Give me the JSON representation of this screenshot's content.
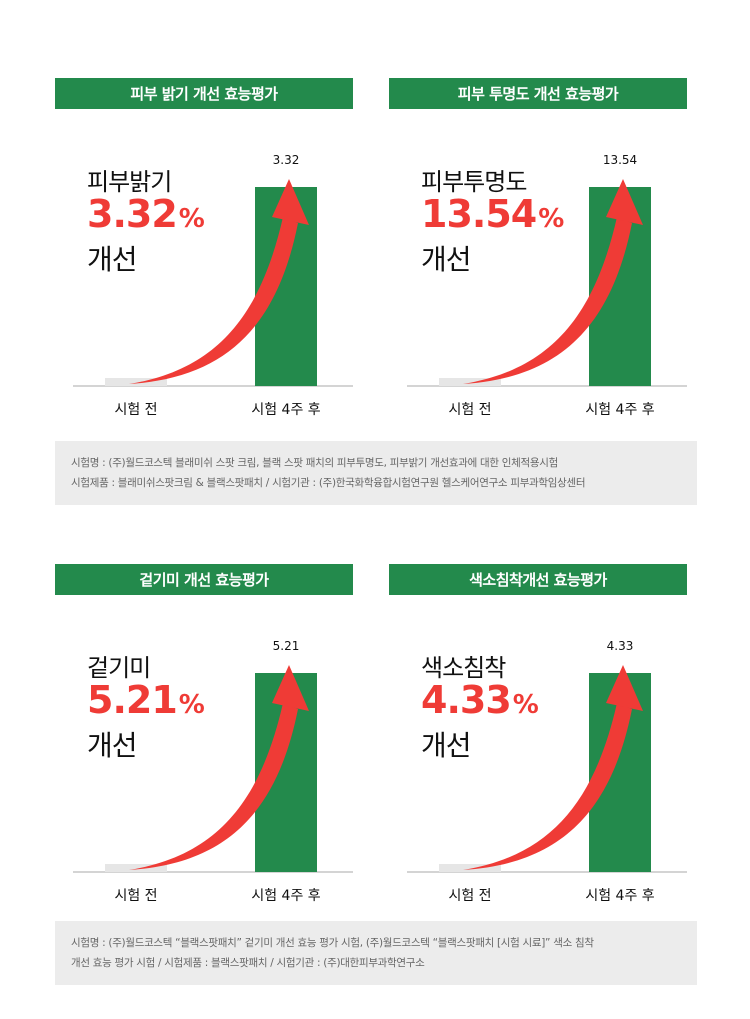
{
  "colors": {
    "green": "#238a4c",
    "red": "#ef3b36",
    "baseline_bar": "#e6e6e6",
    "axis": "#aaaaaa"
  },
  "panels": [
    {
      "header": "피부 밝기 개선 효능평가",
      "metric_name": "피부밝기",
      "metric_value": "3.32",
      "metric_unit": "%",
      "metric_suffix": "개선"
    },
    {
      "header": "피부 투명도 개선 효능평가",
      "metric_name": "피부투명도",
      "metric_value": "13.54",
      "metric_unit": "%",
      "metric_suffix": "개선"
    },
    {
      "header": "겉기미 개선 효능평가",
      "metric_name": "겉기미",
      "metric_value": "5.21",
      "metric_unit": "%",
      "metric_suffix": "개선"
    },
    {
      "header": "색소침착개선 효능평가",
      "metric_name": "색소침착",
      "metric_value": "4.33",
      "metric_unit": "%",
      "metric_suffix": "개선"
    }
  ],
  "notes": [
    {
      "lines": [
        "시험명 : (주)월드코스텍 블래미쉬 스팟 크림, 블랙 스팟 패치의 피부투명도, 피부밝기 개선효과에 대한 인체적용시험",
        "시험제품 : 블래미쉬스팟크림 & 블랙스팟패치 / 시험기관 : (주)한국화학융합시험연구원 헬스케어연구소 피부과학임상센터"
      ]
    },
    {
      "lines": [
        "시험명 : (주)월드코스텍 “블랙스팟패치” 겉기미 개선 효능 평가 시험, (주)월드코스텍 “블랙스팟패치 [시험 시료]” 색소 침착",
        "개선 효능 평가 시험 / 시험제품 : 블랙스팟패치 / 시험기관 : (주)대한피부과학연구소"
      ]
    }
  ],
  "chart_data": [
    {
      "type": "bar",
      "categories": [
        "시험 전",
        "시험 4주 후"
      ],
      "values": [
        0,
        3.32
      ],
      "data_labels": [
        "",
        "3.32"
      ]
    },
    {
      "type": "bar",
      "categories": [
        "시험 전",
        "시험 4주 후"
      ],
      "values": [
        0,
        13.54
      ],
      "data_labels": [
        "",
        "13.54"
      ]
    },
    {
      "type": "bar",
      "categories": [
        "시험 전",
        "시험 4주 후"
      ],
      "values": [
        0,
        5.21
      ],
      "data_labels": [
        "",
        "5.21"
      ]
    },
    {
      "type": "bar",
      "categories": [
        "시험 전",
        "시험 4주 후"
      ],
      "values": [
        0,
        4.33
      ],
      "data_labels": [
        "",
        "4.33"
      ]
    }
  ]
}
